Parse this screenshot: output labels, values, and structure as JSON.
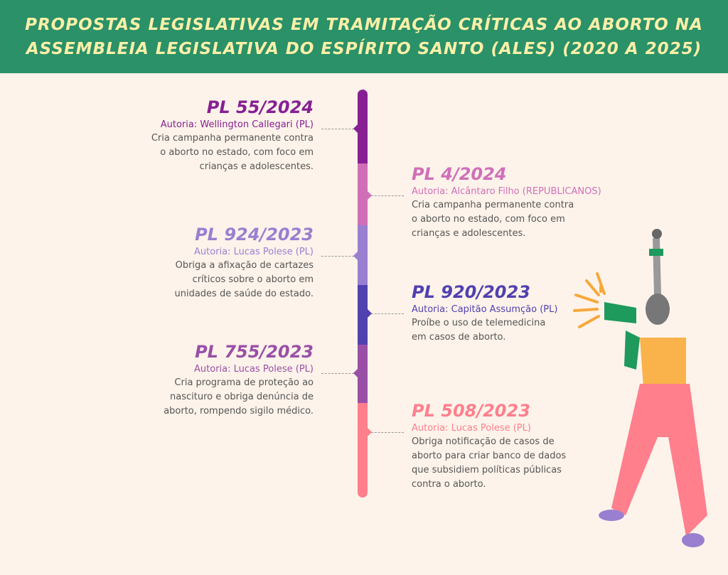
{
  "title": {
    "line1": "Propostas legislativas em tramitação críticas ao aborto na",
    "line2": "Assembleia Legislativa do Espírito Santo (ALES) (2020 a 2025)"
  },
  "colors": {
    "header": "#2a9168",
    "title_text": "#fbefa8",
    "background": "#fdf3ea"
  },
  "entries": [
    {
      "code": "PL 55/2024",
      "author": "Autoria: Wellington Callegari (PL)",
      "desc": [
        "Cria campanha permanente contra",
        "o aborto no estado, com foco em",
        "crianças e adolescentes."
      ],
      "color": "#862093",
      "side": "left"
    },
    {
      "code": "PL 4/2024",
      "author": "Autoria: Alcântaro Filho (REPUBLICANOS)",
      "desc": [
        "Cria campanha permanente contra",
        "o aborto no estado, com foco em",
        "crianças e adolescentes."
      ],
      "color": "#d06fb8",
      "side": "right"
    },
    {
      "code": "PL 924/2023",
      "author": "Autoria: Lucas Polese (PL)",
      "desc": [
        "Obriga a afixação de cartazes",
        "críticos sobre o aborto em",
        "unidades de saúde do estado."
      ],
      "color": "#9a7fd0",
      "side": "left"
    },
    {
      "code": "PL 920/2023",
      "author": "Autoria: Capitão Assumção (PL)",
      "desc": [
        "Proíbe o uso de telemedicina",
        "em casos de aborto."
      ],
      "color": "#5140b0",
      "side": "right"
    },
    {
      "code": "PL 755/2023",
      "author": "Autoria: Lucas Polese (PL)",
      "desc": [
        "Cria programa de proteção ao",
        "nascituro e obriga denúncia de",
        "aborto, rompendo sigilo médico."
      ],
      "color": "#9a4fa6",
      "side": "left"
    },
    {
      "code": "PL 508/2023",
      "author": "Autoria: Lucas Polese (PL)",
      "desc": [
        "Obriga notificação de casos de",
        "aborto para criar banco de dados",
        "que subsidiem políticas públicas",
        "contra o aborto."
      ],
      "color": "#ff7f8c",
      "side": "right"
    }
  ]
}
